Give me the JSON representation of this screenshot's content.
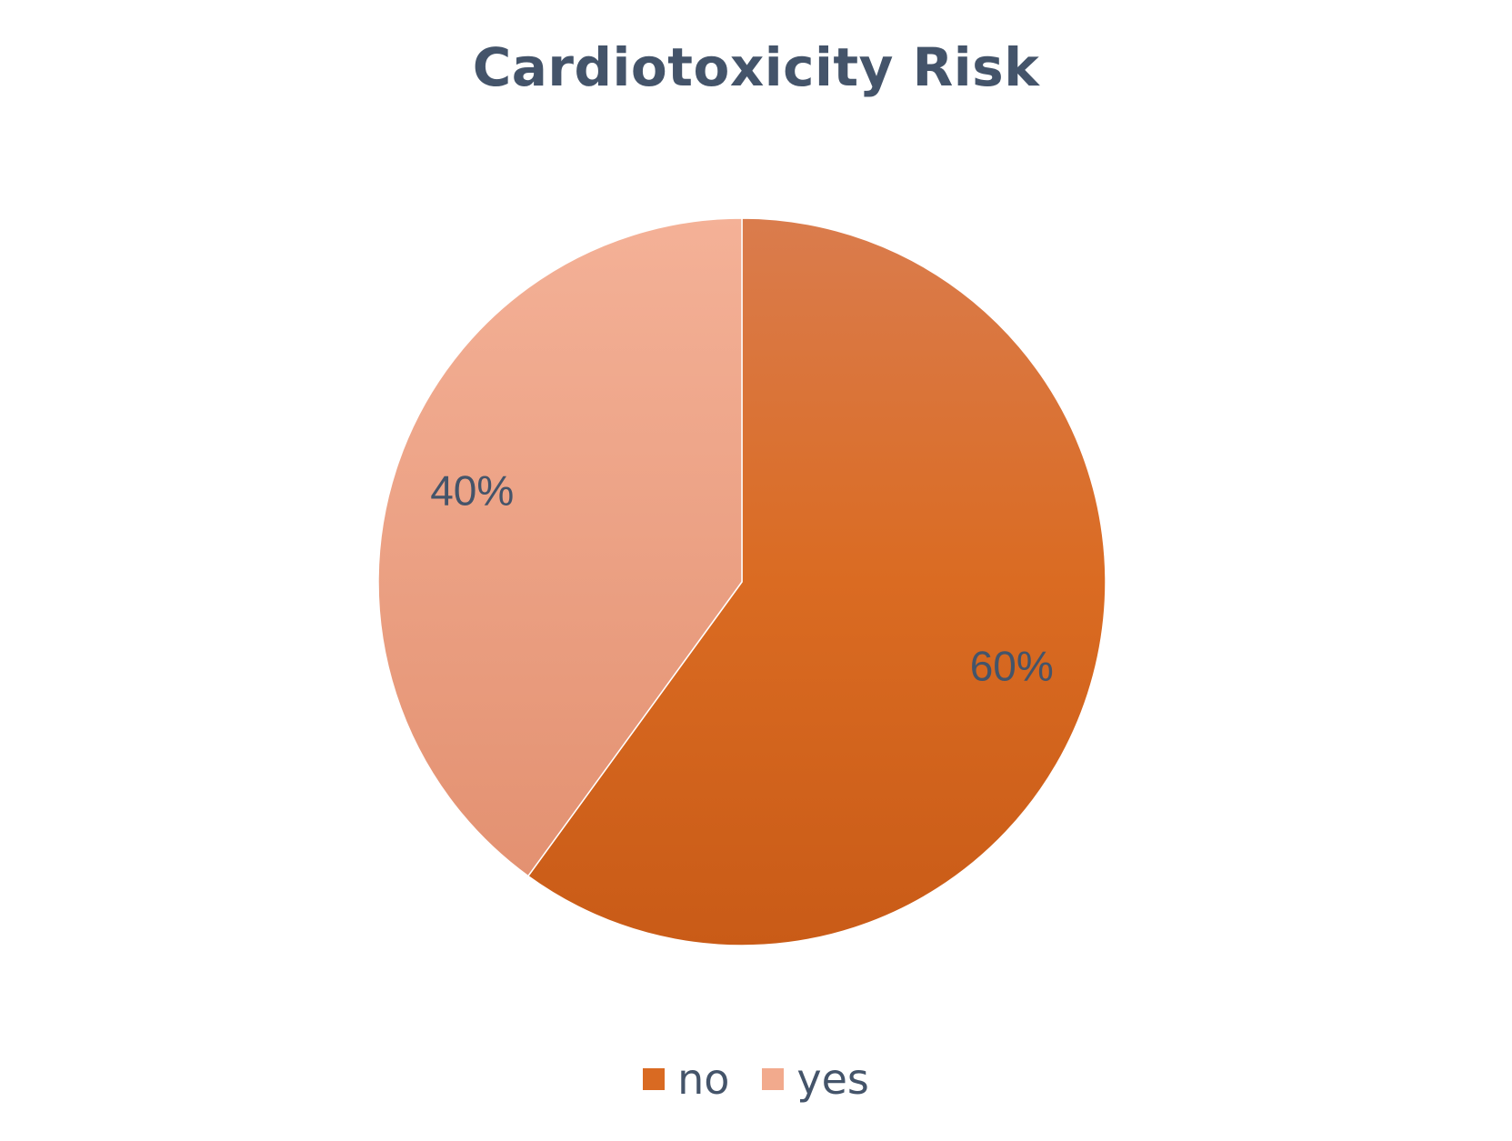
{
  "chart_data": {
    "type": "pie",
    "title": "Cardiotoxicity Risk",
    "categories": [
      "no",
      "yes"
    ],
    "values": [
      60,
      40
    ],
    "data_labels": [
      "60%",
      "40%"
    ],
    "colors": [
      "#d96a22",
      "#f2aa8d"
    ],
    "legend_position": "bottom",
    "start_angle": "12 o'clock, clockwise"
  }
}
